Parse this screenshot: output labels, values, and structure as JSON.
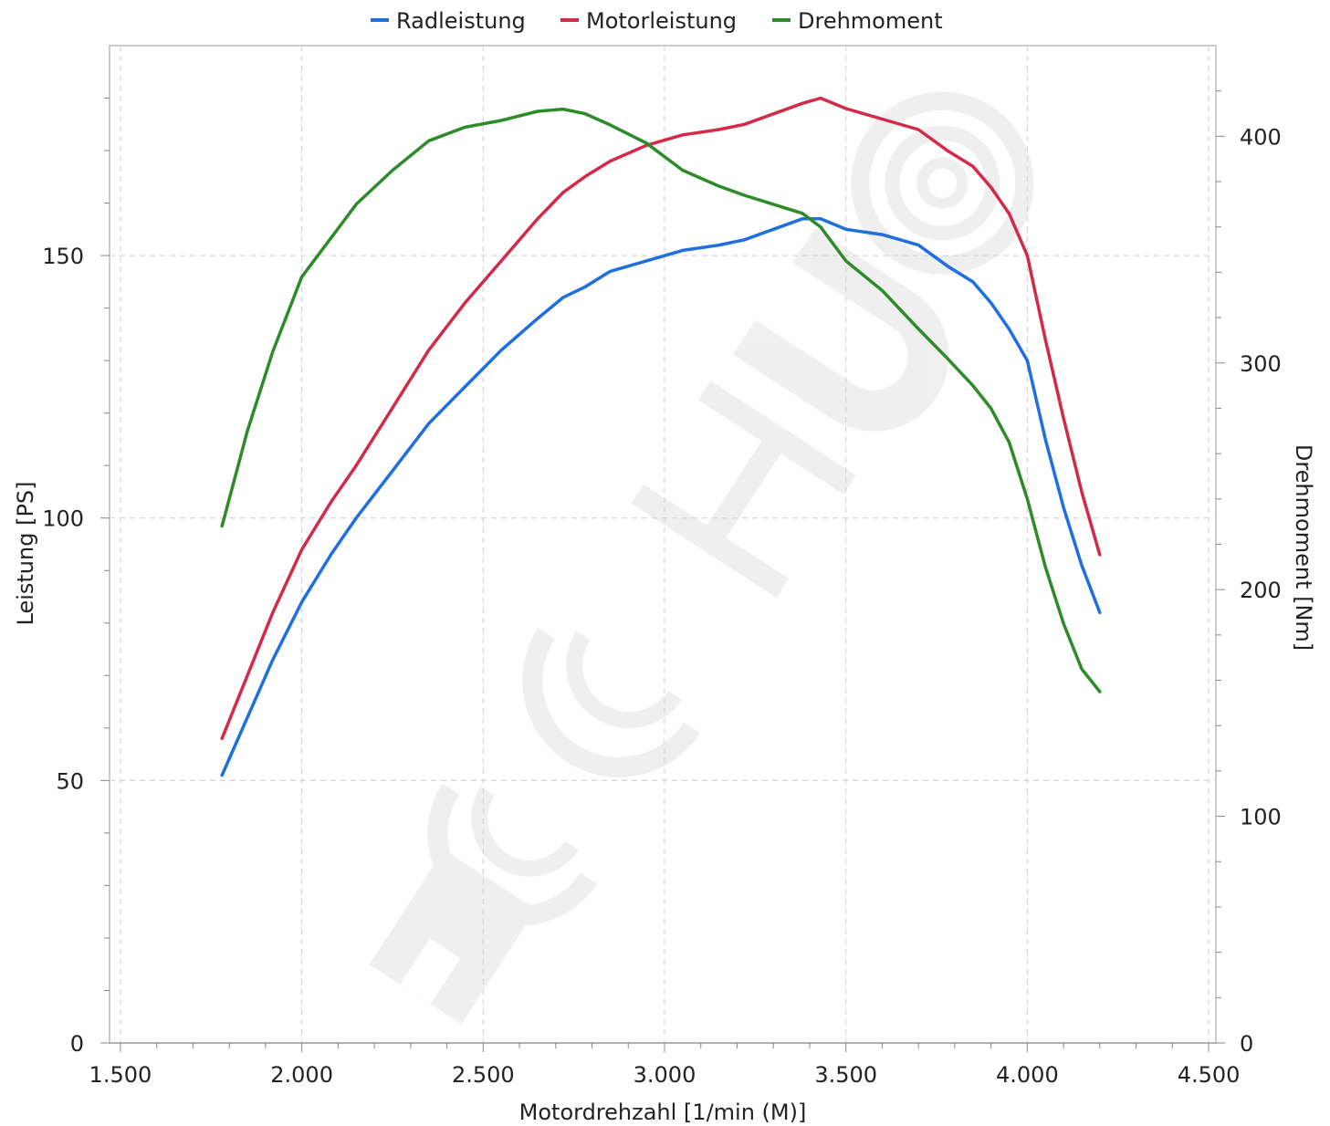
{
  "chart_data": {
    "type": "line",
    "legend_position": "top-center",
    "grid": true,
    "watermark": "TECHU",
    "xlabel": "Motordrehzahl [1/min (M)]",
    "ylabel_left": "Leistung [PS]",
    "ylabel_right": "Drehmoment [Nm]",
    "xlim": [
      1470,
      4520
    ],
    "ylim_left": [
      0,
      190
    ],
    "ylim_right": [
      0,
      440
    ],
    "x_ticks": [
      1500,
      2000,
      2500,
      3000,
      3500,
      4000,
      4500
    ],
    "x_tick_labels": [
      "1.500",
      "2.000",
      "2.500",
      "3.000",
      "3.500",
      "4.000",
      "4.500"
    ],
    "y_left_ticks": [
      0,
      50,
      100,
      150
    ],
    "y_left_tick_labels": [
      "0",
      "50",
      "100",
      "150"
    ],
    "y_right_ticks": [
      0,
      100,
      200,
      300,
      400
    ],
    "y_right_tick_labels": [
      "0",
      "100",
      "200",
      "300",
      "400"
    ],
    "series": [
      {
        "name": "Radleistung",
        "axis": "left",
        "color": "#1f6fe0",
        "x": [
          1780,
          1850,
          1920,
          2000,
          2080,
          2150,
          2250,
          2350,
          2450,
          2550,
          2650,
          2720,
          2780,
          2850,
          2950,
          3050,
          3150,
          3220,
          3300,
          3380,
          3430,
          3500,
          3600,
          3700,
          3780,
          3850,
          3900,
          3950,
          4000,
          4050,
          4100,
          4150,
          4200
        ],
        "y": [
          51,
          62,
          73,
          84,
          93,
          100,
          109,
          118,
          125,
          132,
          138,
          142,
          144,
          147,
          149,
          151,
          152,
          153,
          155,
          157,
          157,
          155,
          154,
          152,
          148,
          145,
          141,
          136,
          130,
          115,
          102,
          91,
          82
        ]
      },
      {
        "name": "Motorleistung",
        "axis": "left",
        "color": "#d42a4a",
        "x": [
          1780,
          1850,
          1920,
          2000,
          2080,
          2150,
          2250,
          2350,
          2450,
          2550,
          2650,
          2720,
          2780,
          2850,
          2950,
          3050,
          3150,
          3220,
          3300,
          3380,
          3430,
          3500,
          3600,
          3700,
          3780,
          3850,
          3900,
          3950,
          4000,
          4050,
          4100,
          4150,
          4200
        ],
        "y": [
          58,
          70,
          82,
          94,
          103,
          110,
          121,
          132,
          141,
          149,
          157,
          162,
          165,
          168,
          171,
          173,
          174,
          175,
          177,
          179,
          180,
          178,
          176,
          174,
          170,
          167,
          163,
          158,
          150,
          134,
          119,
          105,
          93
        ]
      },
      {
        "name": "Drehmoment",
        "axis": "right",
        "color": "#2e8b2a",
        "x": [
          1780,
          1850,
          1920,
          2000,
          2080,
          2150,
          2250,
          2350,
          2450,
          2550,
          2650,
          2720,
          2780,
          2850,
          2950,
          3050,
          3150,
          3220,
          3300,
          3380,
          3430,
          3500,
          3600,
          3700,
          3780,
          3850,
          3900,
          3950,
          4000,
          4050,
          4100,
          4150,
          4200
        ],
        "y": [
          228,
          270,
          305,
          338,
          355,
          370,
          385,
          398,
          404,
          407,
          411,
          412,
          410,
          405,
          397,
          385,
          378,
          374,
          370,
          366,
          360,
          345,
          332,
          315,
          302,
          290,
          280,
          265,
          240,
          210,
          185,
          165,
          155
        ]
      }
    ]
  }
}
